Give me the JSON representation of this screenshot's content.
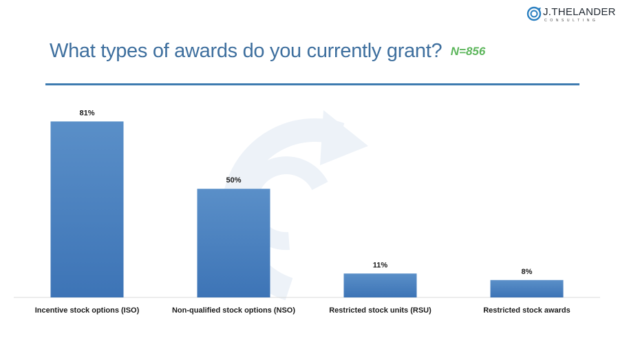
{
  "logo": {
    "name": "J.THELANDER",
    "sub": "CONSULTING",
    "mark": "spiral-logo-icon"
  },
  "header": {
    "title": "What types of awards do you currently grant?",
    "n_label": "N=856"
  },
  "colors": {
    "title": "#3e6f9e",
    "n_label": "#5bb55a",
    "rule": "#3e7bb0",
    "bar_top": "#5a8fc8",
    "bar_bottom": "#3d74b6",
    "watermark": "#eef3f9"
  },
  "chart_data": {
    "type": "bar",
    "title": "What types of awards do you currently grant?",
    "categories": [
      "Incentive stock options (ISO)",
      "Non-qualified stock options (NSO)",
      "Restricted stock units (RSU)",
      "Restricted stock awards"
    ],
    "values": [
      81,
      50,
      11,
      8
    ],
    "value_labels": [
      "81%",
      "50%",
      "11%",
      "8%"
    ],
    "unit": "%",
    "xlabel": "",
    "ylabel": "",
    "ylim": [
      0,
      90
    ],
    "grid": false,
    "legend": "none"
  }
}
